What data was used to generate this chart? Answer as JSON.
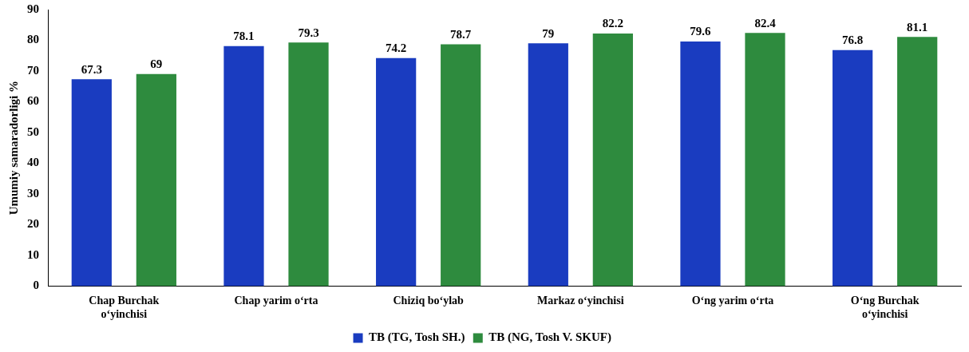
{
  "chart_data": {
    "type": "bar",
    "ylabel": "Umumiy samaradorligi %",
    "categories": [
      "Chap Burchak o‘yinchisi",
      "Chap yarim o‘rta",
      "Chiziq bo‘ylab",
      "Markaz o‘yinchisi",
      "O‘ng yarim o‘rta",
      "O‘ng Burchak o‘yinchisi"
    ],
    "series": [
      {
        "name": "TB (TG, Tosh SH.)",
        "color": "#1a3cc0",
        "values": [
          67.3,
          78.1,
          74.2,
          79,
          79.6,
          76.8
        ]
      },
      {
        "name": "TB (NG, Tosh V. SKUF)",
        "color": "#2e8b3e",
        "values": [
          69,
          79.3,
          78.7,
          82.2,
          82.4,
          81.1
        ]
      }
    ],
    "ylim": [
      0,
      90
    ],
    "yticks": [
      0,
      10,
      20,
      30,
      40,
      50,
      60,
      70,
      80,
      90
    ],
    "grid": false,
    "legend": "bottom",
    "data_labels": true
  }
}
